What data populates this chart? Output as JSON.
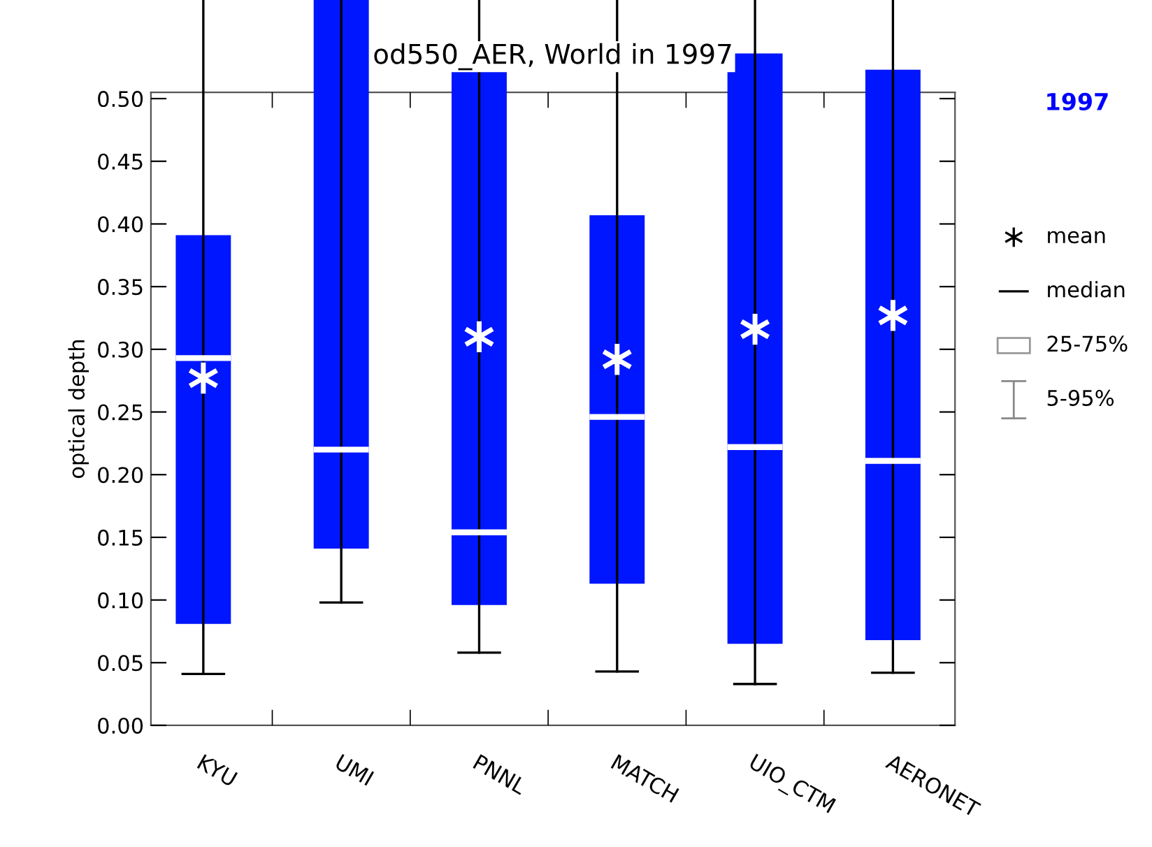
{
  "chart_data": {
    "type": "box",
    "title": "od550_AER, World in 1997",
    "ylabel": "optical depth",
    "categories": [
      "KYU",
      "UMI",
      "PNNL",
      "MATCH",
      "UIO_CTM",
      "AERONET"
    ],
    "color": "#0016ff",
    "boxes": [
      {
        "low": 0.041,
        "q1": 0.081,
        "median": 0.293,
        "q3": 0.391,
        "high": 0.58,
        "mean": 0.277
      },
      {
        "low": 0.098,
        "q1": 0.141,
        "median": 0.22,
        "q3": 0.58,
        "high": 0.58
      },
      {
        "low": 0.058,
        "q1": 0.096,
        "median": 0.154,
        "q3": 0.544,
        "high": 0.58,
        "mean": 0.31
      },
      {
        "low": 0.043,
        "q1": 0.113,
        "median": 0.246,
        "q3": 0.407,
        "high": 0.58,
        "mean": 0.292
      },
      {
        "low": 0.033,
        "q1": 0.065,
        "median": 0.222,
        "q3": 0.536,
        "high": 0.58,
        "mean": 0.316
      },
      {
        "low": 0.042,
        "q1": 0.068,
        "median": 0.211,
        "q3": 0.523,
        "high": 0.58,
        "mean": 0.327
      }
    ],
    "ylim": [
      0,
      0.505
    ],
    "yticks": [
      {
        "value": 0,
        "label": "0.00"
      },
      0.05,
      {
        "value": 0.1,
        "label": "0.10"
      },
      0.15,
      {
        "value": 0.2,
        "label": "0.20"
      },
      0.25,
      {
        "value": 0.3,
        "label": "0.30"
      },
      0.35,
      {
        "value": 0.4,
        "label": "0.40"
      },
      0.45,
      {
        "value": 0.5,
        "label": "0.50"
      }
    ],
    "grid": false,
    "annotations": [
      "1997",
      "mean",
      "median",
      "25-75%",
      "5-95%"
    ]
  }
}
